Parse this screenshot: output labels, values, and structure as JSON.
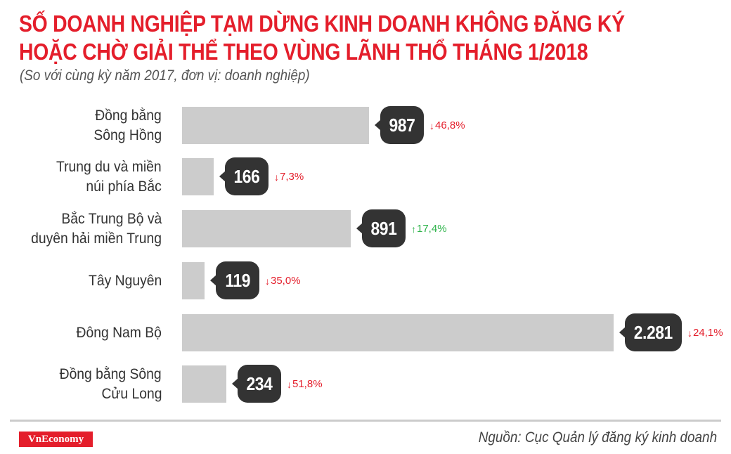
{
  "header": {
    "title_line1": "SỐ DOANH NGHIỆP TẠM DỪNG KINH DOANH KHÔNG ĐĂNG KÝ",
    "title_line2": "HOẶC CHỜ GIẢI THỂ THEO VÙNG LÃNH THỔ THÁNG 1/2018",
    "subtitle": "(So với cùng kỳ năm 2017, đơn vị: doanh nghiệp)"
  },
  "colors": {
    "title": "#e41e2b",
    "bar": "#cccccc",
    "bubble": "#333333",
    "decrease": "#e41e2b",
    "increase": "#2db34a"
  },
  "rows": [
    {
      "label_line1": "Đồng bằng",
      "label_line2": "Sông Hồng",
      "value": 987,
      "value_label": "987",
      "change": "46,8%",
      "direction": "down",
      "arrow": "↓"
    },
    {
      "label_line1": "Trung du và miền",
      "label_line2": "núi phía Bắc",
      "value": 166,
      "value_label": "166",
      "change": "7,3%",
      "direction": "down",
      "arrow": "↓"
    },
    {
      "label_line1": "Bắc Trung Bộ và",
      "label_line2": "duyên hải miền Trung",
      "value": 891,
      "value_label": "891",
      "change": "17,4%",
      "direction": "up",
      "arrow": "↑"
    },
    {
      "label_line1": "Tây Nguyên",
      "label_line2": "",
      "value": 119,
      "value_label": "119",
      "change": "35,0%",
      "direction": "down",
      "arrow": "↓"
    },
    {
      "label_line1": "Đông Nam Bộ",
      "label_line2": "",
      "value": 2281,
      "value_label": "2.281",
      "change": "24,1%",
      "direction": "down",
      "arrow": "↓"
    },
    {
      "label_line1": "Đồng bằng Sông",
      "label_line2": "Cửu Long",
      "value": 234,
      "value_label": "234",
      "change": "51,8%",
      "direction": "down",
      "arrow": "↓"
    }
  ],
  "footer": {
    "logo": "VnEconomy",
    "source": "Nguồn: Cục Quản lý đăng ký kinh doanh"
  },
  "chart_data": {
    "type": "bar",
    "orientation": "horizontal",
    "title": "SỐ DOANH NGHIỆP TẠM DỪNG KINH DOANH KHÔNG ĐĂNG KÝ HOẶC CHỜ GIẢI THỂ THEO VÙNG LÃNH THỔ THÁNG 1/2018",
    "subtitle": "(So với cùng kỳ năm 2017, đơn vị: doanh nghiệp)",
    "categories": [
      "Đồng bằng Sông Hồng",
      "Trung du và miền núi phía Bắc",
      "Bắc Trung Bộ và duyên hải miền Trung",
      "Tây Nguyên",
      "Đông Nam Bộ",
      "Đồng bằng Sông Cửu Long"
    ],
    "values": [
      987,
      166,
      891,
      119,
      2281,
      234
    ],
    "yoy_change_percent": [
      -46.8,
      -7.3,
      17.4,
      -35.0,
      -24.1,
      -51.8
    ],
    "xlabel": "",
    "ylabel": "",
    "unit": "doanh nghiệp",
    "grid": false,
    "legend": null,
    "source": "Nguồn: Cục Quản lý đăng ký kinh doanh"
  }
}
